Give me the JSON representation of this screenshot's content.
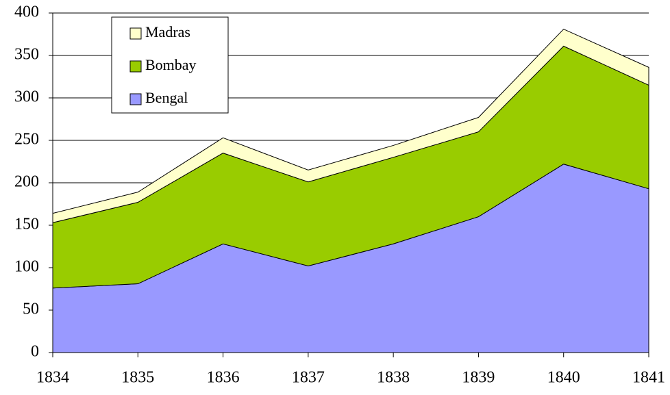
{
  "chart_data": {
    "type": "stacked_area",
    "x": [
      1834,
      1835,
      1836,
      1837,
      1838,
      1839,
      1840,
      1841
    ],
    "series": [
      {
        "name": "Bengal",
        "color": "#9999ff",
        "values": [
          76,
          81,
          128,
          102,
          128,
          160,
          222,
          193
        ]
      },
      {
        "name": "Bombay",
        "color": "#99cc00",
        "values": [
          77,
          96,
          107,
          99,
          102,
          100,
          139,
          122
        ]
      },
      {
        "name": "Madras",
        "color": "#ffffcc",
        "values": [
          11,
          12,
          18,
          14,
          14,
          17,
          20,
          21
        ]
      }
    ],
    "xlim": [
      1834,
      1841
    ],
    "xticks": [
      1834,
      1835,
      1836,
      1837,
      1838,
      1839,
      1840,
      1841
    ],
    "ylim": [
      0,
      400
    ],
    "yticks": [
      0,
      50,
      100,
      150,
      200,
      250,
      300,
      350,
      400
    ],
    "grid": true,
    "legend": "upper left"
  }
}
